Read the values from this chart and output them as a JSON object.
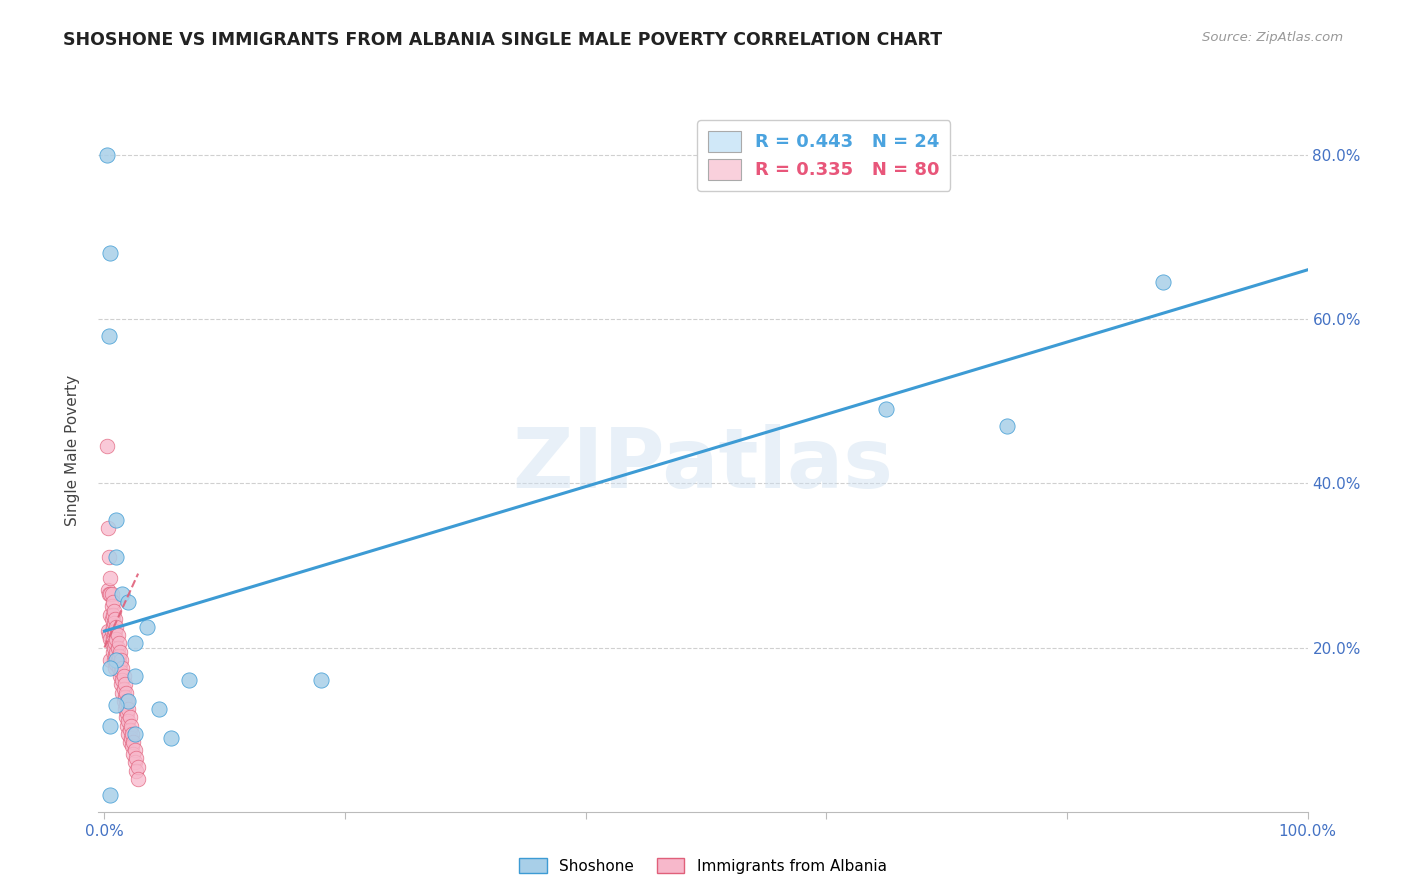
{
  "title": "SHOSHONE VS IMMIGRANTS FROM ALBANIA SINGLE MALE POVERTY CORRELATION CHART",
  "source": "Source: ZipAtlas.com",
  "ylabel": "Single Male Poverty",
  "watermark": "ZIPatlas",
  "legend_entries": [
    {
      "label": "R = 0.443   N = 24",
      "color": "#4aa3df"
    },
    {
      "label": "R = 0.335   N = 80",
      "color": "#e8567a"
    }
  ],
  "shoshone_points": [
    [
      0.002,
      0.8
    ],
    [
      0.005,
      0.68
    ],
    [
      0.004,
      0.58
    ],
    [
      0.01,
      0.355
    ],
    [
      0.01,
      0.31
    ],
    [
      0.015,
      0.265
    ],
    [
      0.02,
      0.255
    ],
    [
      0.035,
      0.225
    ],
    [
      0.025,
      0.205
    ],
    [
      0.01,
      0.185
    ],
    [
      0.005,
      0.175
    ],
    [
      0.025,
      0.165
    ],
    [
      0.07,
      0.16
    ],
    [
      0.02,
      0.135
    ],
    [
      0.01,
      0.13
    ],
    [
      0.045,
      0.125
    ],
    [
      0.005,
      0.105
    ],
    [
      0.025,
      0.095
    ],
    [
      0.055,
      0.09
    ],
    [
      0.18,
      0.16
    ],
    [
      0.005,
      0.02
    ],
    [
      0.65,
      0.49
    ],
    [
      0.75,
      0.47
    ],
    [
      0.88,
      0.645
    ]
  ],
  "albania_points": [
    [
      0.002,
      0.445
    ],
    [
      0.003,
      0.345
    ],
    [
      0.003,
      0.27
    ],
    [
      0.003,
      0.22
    ],
    [
      0.004,
      0.31
    ],
    [
      0.004,
      0.265
    ],
    [
      0.004,
      0.215
    ],
    [
      0.005,
      0.285
    ],
    [
      0.005,
      0.265
    ],
    [
      0.005,
      0.24
    ],
    [
      0.005,
      0.21
    ],
    [
      0.005,
      0.185
    ],
    [
      0.006,
      0.265
    ],
    [
      0.006,
      0.25
    ],
    [
      0.006,
      0.235
    ],
    [
      0.006,
      0.22
    ],
    [
      0.006,
      0.205
    ],
    [
      0.007,
      0.255
    ],
    [
      0.007,
      0.24
    ],
    [
      0.007,
      0.225
    ],
    [
      0.007,
      0.21
    ],
    [
      0.007,
      0.195
    ],
    [
      0.008,
      0.245
    ],
    [
      0.008,
      0.23
    ],
    [
      0.008,
      0.215
    ],
    [
      0.008,
      0.2
    ],
    [
      0.008,
      0.185
    ],
    [
      0.009,
      0.235
    ],
    [
      0.009,
      0.22
    ],
    [
      0.009,
      0.205
    ],
    [
      0.009,
      0.19
    ],
    [
      0.009,
      0.175
    ],
    [
      0.01,
      0.225
    ],
    [
      0.01,
      0.21
    ],
    [
      0.01,
      0.195
    ],
    [
      0.01,
      0.18
    ],
    [
      0.011,
      0.215
    ],
    [
      0.011,
      0.2
    ],
    [
      0.011,
      0.185
    ],
    [
      0.012,
      0.205
    ],
    [
      0.012,
      0.19
    ],
    [
      0.012,
      0.175
    ],
    [
      0.013,
      0.195
    ],
    [
      0.013,
      0.18
    ],
    [
      0.013,
      0.165
    ],
    [
      0.014,
      0.185
    ],
    [
      0.014,
      0.17
    ],
    [
      0.014,
      0.155
    ],
    [
      0.015,
      0.175
    ],
    [
      0.015,
      0.16
    ],
    [
      0.015,
      0.145
    ],
    [
      0.016,
      0.165
    ],
    [
      0.016,
      0.15
    ],
    [
      0.016,
      0.135
    ],
    [
      0.017,
      0.155
    ],
    [
      0.017,
      0.14
    ],
    [
      0.017,
      0.125
    ],
    [
      0.018,
      0.145
    ],
    [
      0.018,
      0.13
    ],
    [
      0.018,
      0.115
    ],
    [
      0.019,
      0.135
    ],
    [
      0.019,
      0.12
    ],
    [
      0.019,
      0.105
    ],
    [
      0.02,
      0.125
    ],
    [
      0.02,
      0.11
    ],
    [
      0.02,
      0.095
    ],
    [
      0.021,
      0.115
    ],
    [
      0.021,
      0.1
    ],
    [
      0.021,
      0.085
    ],
    [
      0.022,
      0.105
    ],
    [
      0.022,
      0.09
    ],
    [
      0.023,
      0.095
    ],
    [
      0.023,
      0.08
    ],
    [
      0.024,
      0.085
    ],
    [
      0.024,
      0.07
    ],
    [
      0.025,
      0.075
    ],
    [
      0.025,
      0.06
    ],
    [
      0.026,
      0.065
    ],
    [
      0.026,
      0.05
    ],
    [
      0.028,
      0.055
    ],
    [
      0.028,
      0.04
    ]
  ],
  "shoshone_line_x": [
    0.0,
    1.0
  ],
  "shoshone_line_y": [
    0.22,
    0.66
  ],
  "albania_line_x": [
    0.0,
    0.028
  ],
  "albania_line_y": [
    0.2,
    0.29
  ],
  "scatter_color_blue": "#a8cfe8",
  "scatter_color_pink": "#f7b8cb",
  "line_color_blue": "#3d9bd4",
  "line_color_pink": "#e0607a",
  "grid_color": "#d0d0d0",
  "background_color": "#ffffff",
  "title_color": "#222222",
  "title_fontsize": 12.5,
  "source_color": "#999999",
  "axis_tick_color": "#4472c4",
  "ylabel_color": "#444444",
  "ylim": [
    0.0,
    0.88
  ],
  "xlim": [
    -0.005,
    1.0
  ],
  "yticks": [
    0.2,
    0.4,
    0.6,
    0.8
  ],
  "ytick_labels": [
    "20.0%",
    "40.0%",
    "60.0%",
    "80.0%"
  ],
  "xtick_positions": [
    0.0,
    0.5,
    1.0
  ],
  "legend_box_color": "#d0e8f8",
  "legend_box_color2": "#f9d0dc"
}
